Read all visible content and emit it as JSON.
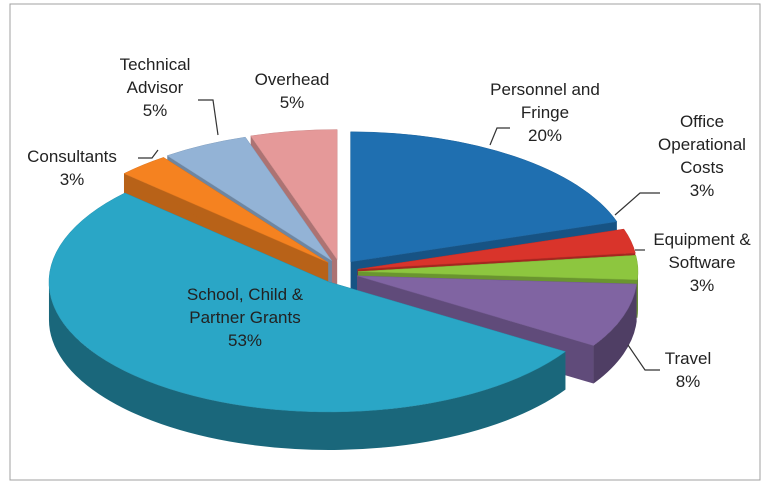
{
  "chart_data": {
    "type": "pie3d",
    "categories": [
      "Personnel and Fringe",
      "Office Operational Costs",
      "Equipment & Software",
      "Travel",
      "School, Child & Partner Grants",
      "Consultants",
      "Technical Advisor",
      "Overhead"
    ],
    "values": [
      20,
      3,
      3,
      8,
      53,
      3,
      5,
      5
    ],
    "value_labels": [
      "20%",
      "3%",
      "3%",
      "8%",
      "53%",
      "3%",
      "5%",
      "5%"
    ],
    "colors": [
      "#1f6fb0",
      "#d9342b",
      "#8dc63f",
      "#8064a2",
      "#2aa6c6",
      "#f58220",
      "#93b3d6",
      "#e59999"
    ]
  }
}
